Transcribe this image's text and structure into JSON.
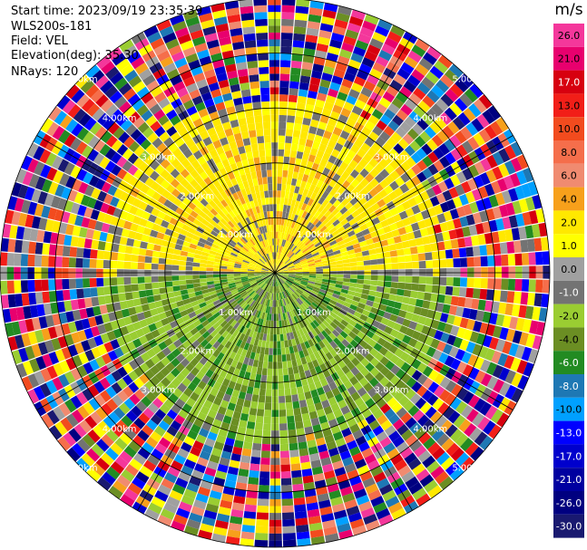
{
  "header": {
    "start_time": "Start time: 2023/09/19 23:35:39",
    "instrument": "WLS200s-181",
    "field": "Field: VEL",
    "elevation": "Elevation(deg): 35.30",
    "nrays": "NRays: 120"
  },
  "chart_data": {
    "type": "heatmap",
    "projection": "polar-ppi",
    "unit": "m/s",
    "range_rings_km": [
      1,
      2,
      3,
      4,
      5
    ],
    "range_ring_labels": [
      "1.00km",
      "2.00km",
      "3.00km",
      "4.00km",
      "5.00km"
    ],
    "max_range_km": 5.0,
    "nrays": 120,
    "colorbar": {
      "label": "m/s",
      "ticks": [
        "26.0",
        "21.0",
        "17.0",
        "13.0",
        "10.0",
        "8.0",
        "6.0",
        "4.0",
        "2.0",
        "1.0",
        "0.0",
        "-1.0",
        "-2.0",
        "-4.0",
        "-6.0",
        "-8.0",
        "-10.0",
        "-13.0",
        "-17.0",
        "-21.0",
        "-26.0",
        "-30.0"
      ],
      "colors": [
        "#f4379b",
        "#e8006e",
        "#d7000f",
        "#f21e18",
        "#f24b1e",
        "#f56e4b",
        "#f08b70",
        "#f7a01b",
        "#ffe800",
        "#ffff00",
        "#a0a0a0",
        "#737373",
        "#9acd32",
        "#6b8e23",
        "#228b22",
        "#1e78b4",
        "#00a0ff",
        "#0000ff",
        "#0000cd",
        "#0000a0",
        "#000080",
        "#191970"
      ]
    }
  }
}
